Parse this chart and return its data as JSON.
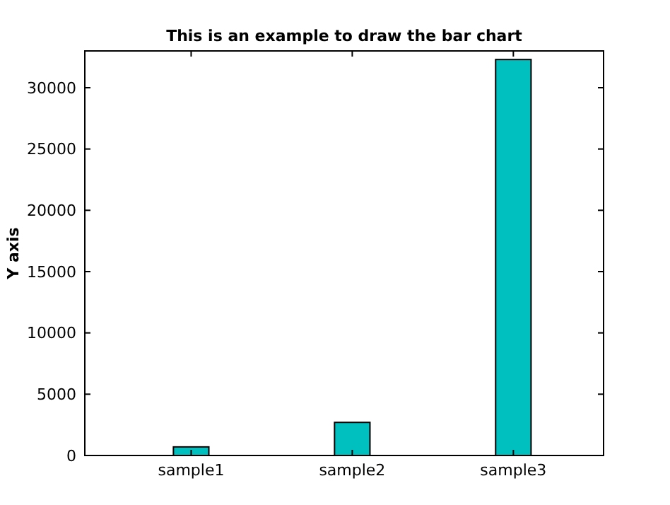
{
  "chart_data": {
    "type": "bar",
    "title": "This is an example to draw the bar chart",
    "ylabel": "Y axis",
    "categories": [
      "sample1",
      "sample2",
      "sample3"
    ],
    "values": [
      700,
      2700,
      32300
    ],
    "color": "#00bfbf",
    "ylim": [
      0,
      33000
    ],
    "yticks": [
      0,
      5000,
      10000,
      15000,
      20000,
      25000,
      30000
    ],
    "grid": false
  }
}
